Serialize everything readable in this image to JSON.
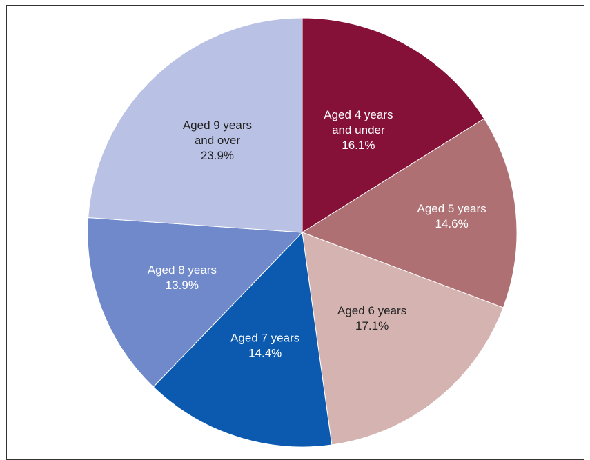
{
  "chart_data": {
    "type": "pie",
    "title": "",
    "slices": [
      {
        "label_lines": [
          "Aged 4 years",
          "and under"
        ],
        "percent_label": "16.1%",
        "value": 16.1,
        "color": "#861138",
        "text_color": "#ffffff"
      },
      {
        "label_lines": [
          "Aged 5 years"
        ],
        "percent_label": "14.6%",
        "value": 14.6,
        "color": "#ae7073",
        "text_color": "#ffffff"
      },
      {
        "label_lines": [
          "Aged 6 years"
        ],
        "percent_label": "17.1%",
        "value": 17.1,
        "color": "#d4b3b1",
        "text_color": "#222222"
      },
      {
        "label_lines": [
          "Aged 7 years"
        ],
        "percent_label": "14.4%",
        "value": 14.4,
        "color": "#0b5ab0",
        "text_color": "#ffffff"
      },
      {
        "label_lines": [
          "Aged 8 years"
        ],
        "percent_label": "13.9%",
        "value": 13.9,
        "color": "#6f89cb",
        "text_color": "#ffffff"
      },
      {
        "label_lines": [
          "Aged 9 years",
          "and over"
        ],
        "percent_label": "23.9%",
        "value": 23.9,
        "color": "#b9c2e4",
        "text_color": "#222222"
      }
    ],
    "start": "12 o'clock",
    "direction": "clockwise",
    "legend": "none"
  }
}
